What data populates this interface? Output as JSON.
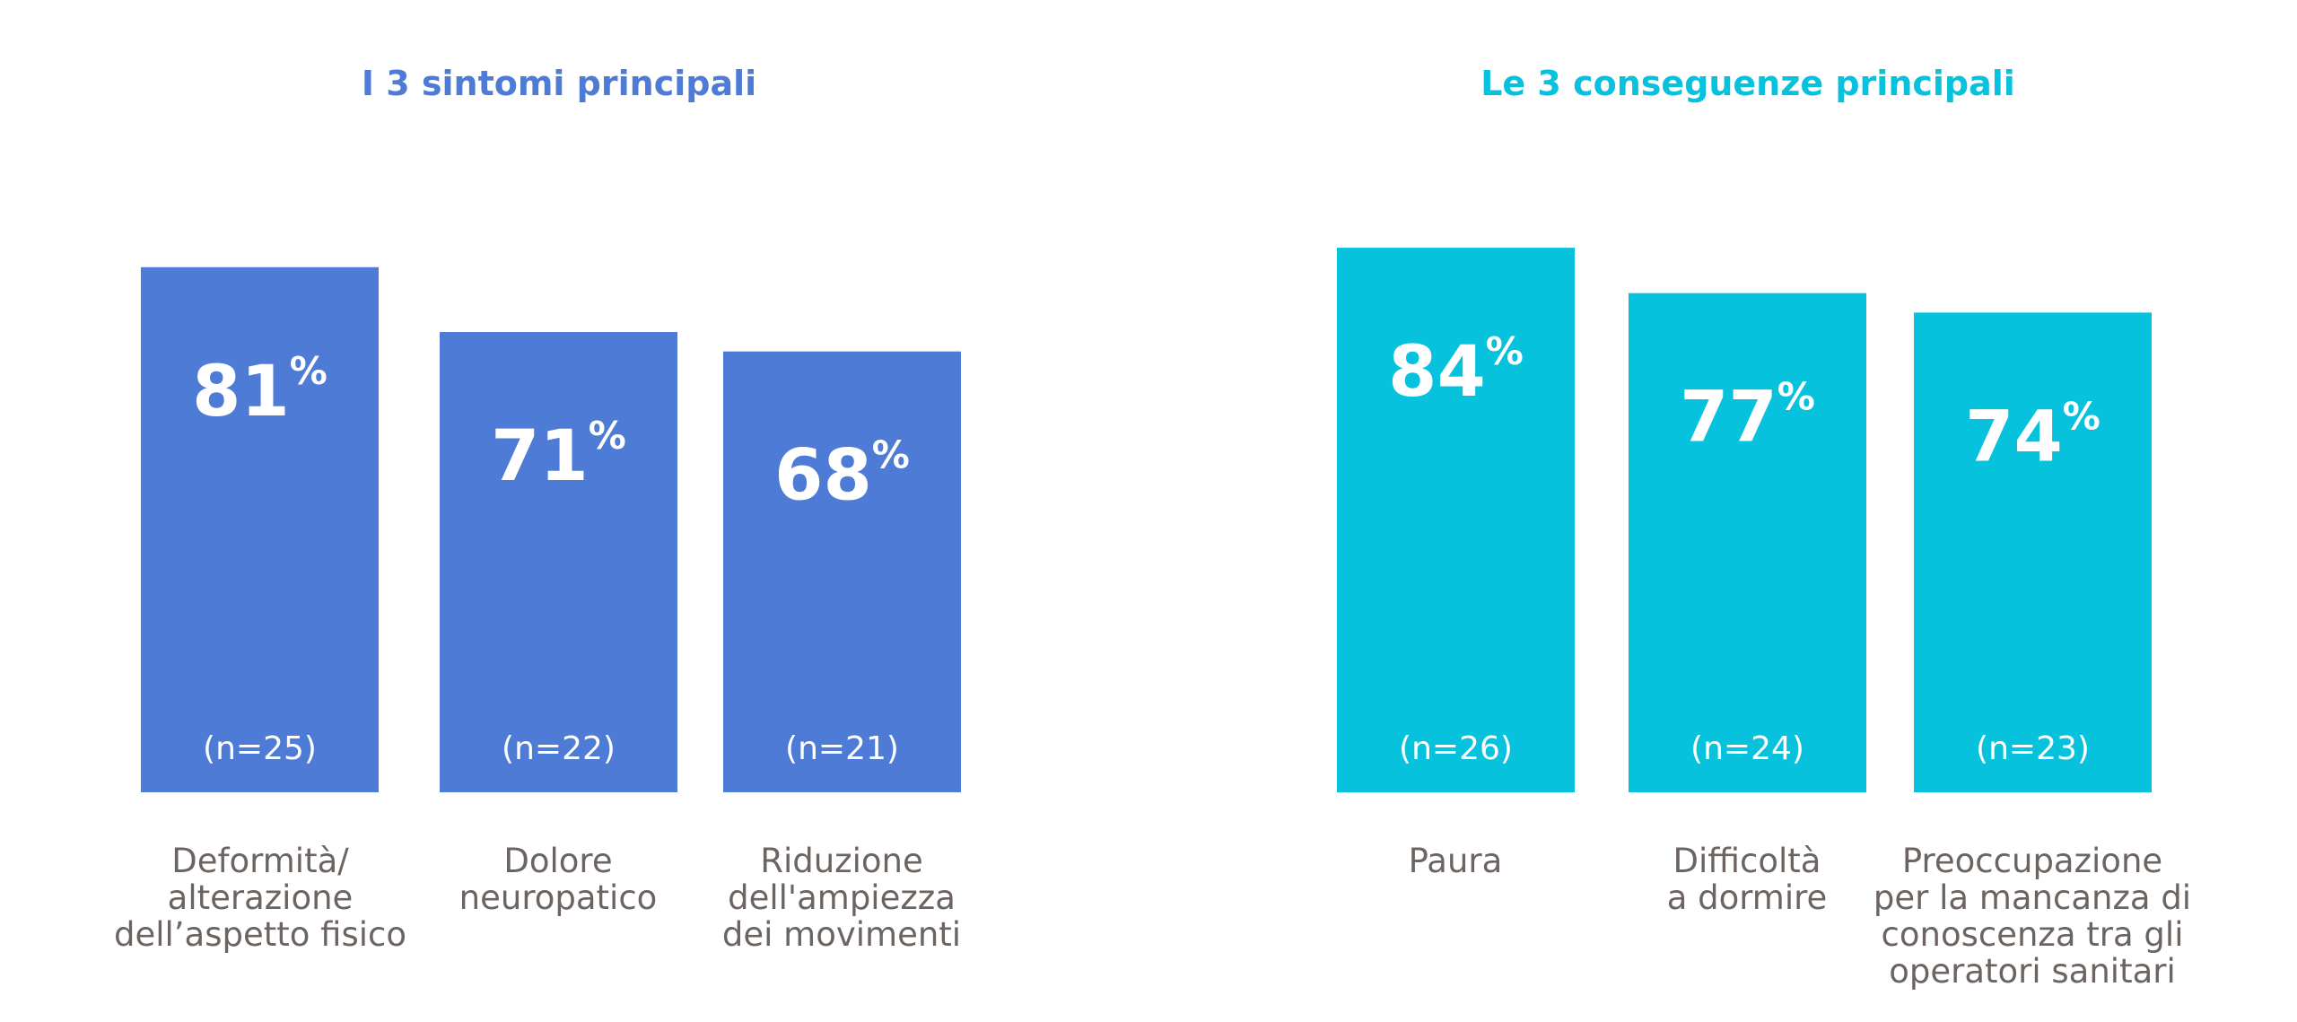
{
  "colors": {
    "symptoms": "#4e7bd5",
    "consequences": "#07c2dc",
    "category_text": "#6b6461",
    "bar_text": "#ffffff"
  },
  "chart_data": [
    {
      "type": "bar",
      "title": "I 3 sintomi principali",
      "categories": [
        [
          "Deformità/",
          "alterazione",
          "dell’aspetto fisico"
        ],
        [
          "Dolore",
          "neuropatico"
        ],
        [
          "Riduzione",
          "dell'ampiezza",
          "dei movimenti"
        ]
      ],
      "values": [
        81,
        71,
        68
      ],
      "value_labels": [
        "81",
        "71",
        "68"
      ],
      "unit": "%",
      "n_labels": [
        "(n=25)",
        "(n=22)",
        "(n=21)"
      ],
      "ylim": [
        0,
        100
      ],
      "color": "#4e7bd5",
      "grid": false
    },
    {
      "type": "bar",
      "title": "Le 3 conseguenze principali",
      "categories": [
        [
          "Paura"
        ],
        [
          "Difficoltà",
          "a dormire"
        ],
        [
          "Preoccupazione",
          "per la mancanza di",
          "conoscenza tra gli",
          "operatori sanitari"
        ]
      ],
      "values": [
        84,
        77,
        74
      ],
      "value_labels": [
        "84",
        "77",
        "74"
      ],
      "unit": "%",
      "n_labels": [
        "(n=26)",
        "(n=24)",
        "(n=23)"
      ],
      "ylim": [
        0,
        100
      ],
      "color": "#07c2dc",
      "grid": false
    }
  ]
}
